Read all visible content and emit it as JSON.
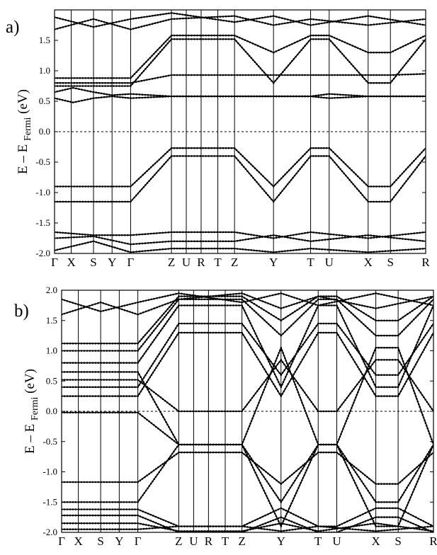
{
  "figure": {
    "background": "#ffffff",
    "line_color": "#000000"
  },
  "chart_data": [
    {
      "type": "line",
      "panel_label": "a)",
      "ylabel": {
        "main": "E – E",
        "sub": "Fermi",
        "unit": "(eV)"
      },
      "ylim": [
        -2.0,
        2.0
      ],
      "yticks": [
        "-2.0",
        "-1.5",
        "-1.0",
        "-0.5",
        "0.0",
        "0.5",
        "1.0",
        "1.5"
      ],
      "ytick_values": [
        -2.0,
        -1.5,
        -1.0,
        -0.5,
        0.0,
        0.5,
        1.0,
        1.5
      ],
      "fermi_level": 0.0,
      "fermi_style": "dashed",
      "high_symmetry_labels": [
        "Γ",
        "X",
        "S",
        "Y",
        "Γ",
        "Z",
        "U",
        "R",
        "T",
        "Z",
        "Y",
        "T",
        "U",
        "X",
        "S",
        "R"
      ],
      "high_symmetry_positions": [
        0,
        0.045,
        0.105,
        0.155,
        0.205,
        0.315,
        0.355,
        0.395,
        0.44,
        0.485,
        0.59,
        0.69,
        0.74,
        0.845,
        0.905,
        1.0
      ],
      "series": [
        {
          "x": [
            0,
            0.205,
            0.315,
            0.485,
            0.59,
            0.69,
            0.74,
            0.845,
            0.905,
            1.0
          ],
          "y": [
            -0.9,
            -0.9,
            -0.27,
            -0.27,
            -0.9,
            -0.27,
            -0.27,
            -0.9,
            -0.9,
            -0.27
          ]
        },
        {
          "x": [
            0,
            0.205,
            0.315,
            0.485,
            0.59,
            0.69,
            0.74,
            0.845,
            0.905,
            1.0
          ],
          "y": [
            -1.15,
            -1.15,
            -0.4,
            -0.4,
            -1.15,
            -0.4,
            -0.4,
            -1.15,
            -1.15,
            -0.4
          ]
        },
        {
          "x": [
            0,
            0.205,
            0.315,
            0.485,
            0.59,
            0.69,
            0.74,
            0.845,
            0.905,
            1.0
          ],
          "y": [
            0.8,
            0.8,
            0.93,
            0.93,
            0.93,
            0.93,
            0.93,
            0.93,
            0.93,
            0.95
          ]
        },
        {
          "x": [
            0,
            0.205,
            0.315,
            0.485,
            0.59,
            0.69,
            0.74,
            0.845,
            0.905,
            1.0
          ],
          "y": [
            0.75,
            0.75,
            1.52,
            1.52,
            0.8,
            1.52,
            1.52,
            0.8,
            0.8,
            1.52
          ]
        },
        {
          "x": [
            0,
            0.205,
            0.315,
            0.485,
            0.59,
            0.69,
            0.74,
            0.845,
            0.905,
            1.0
          ],
          "y": [
            0.88,
            0.88,
            1.58,
            1.58,
            1.3,
            1.58,
            1.58,
            1.3,
            1.3,
            1.58
          ]
        },
        {
          "x": [
            0,
            0.05,
            0.105,
            0.155,
            0.205,
            0.315,
            0.485,
            0.59,
            0.69,
            0.74,
            0.845,
            0.905,
            1.0
          ],
          "y": [
            0.55,
            0.48,
            0.55,
            0.58,
            0.55,
            0.58,
            0.58,
            0.58,
            0.58,
            0.62,
            0.58,
            0.58,
            0.58
          ]
        },
        {
          "x": [
            0,
            0.05,
            0.105,
            0.155,
            0.205,
            0.315,
            0.485,
            0.59,
            0.69,
            0.74,
            0.845,
            0.905,
            1.0
          ],
          "y": [
            0.65,
            0.72,
            0.65,
            0.6,
            0.62,
            0.58,
            0.58,
            0.58,
            0.58,
            0.55,
            0.58,
            0.58,
            0.58
          ]
        },
        {
          "x": [
            0,
            0.105,
            0.205,
            0.315,
            0.485,
            0.59,
            0.69,
            0.845,
            1.0
          ],
          "y": [
            1.68,
            1.85,
            1.68,
            1.85,
            1.9,
            1.75,
            1.85,
            1.75,
            1.85
          ]
        },
        {
          "x": [
            0,
            0.105,
            0.205,
            0.315,
            0.485,
            0.59,
            0.69,
            0.845,
            1.0
          ],
          "y": [
            1.88,
            1.72,
            1.85,
            1.95,
            1.8,
            1.9,
            1.75,
            1.9,
            1.75
          ]
        },
        {
          "x": [
            0,
            0.105,
            0.205,
            0.315,
            0.485,
            0.59,
            0.69,
            0.845,
            1.0
          ],
          "y": [
            -1.65,
            -1.7,
            -1.7,
            -1.65,
            -1.65,
            -1.75,
            -1.65,
            -1.75,
            -1.65
          ]
        },
        {
          "x": [
            0,
            0.105,
            0.205,
            0.315,
            0.485,
            0.59,
            0.69,
            0.845,
            1.0
          ],
          "y": [
            -1.75,
            -1.72,
            -1.85,
            -1.8,
            -1.8,
            -1.7,
            -1.8,
            -1.7,
            -1.8
          ]
        },
        {
          "x": [
            0,
            0.105,
            0.205,
            0.315,
            0.485,
            0.59,
            0.69,
            0.845,
            1.0
          ],
          "y": [
            -1.95,
            -1.8,
            -1.98,
            -1.92,
            -1.92,
            -1.98,
            -1.92,
            -1.98,
            -1.92
          ]
        }
      ]
    },
    {
      "type": "line",
      "panel_label": "b)",
      "ylabel": {
        "main": "E – E",
        "sub": "Fermi",
        "unit": "(eV)"
      },
      "ylim": [
        -2.0,
        2.0
      ],
      "yticks": [
        "-2.0",
        "-1.5",
        "-1.0",
        "-0.5",
        "0.0",
        "0.5",
        "1.0",
        "1.5",
        "2.0"
      ],
      "ytick_values": [
        -2.0,
        -1.5,
        -1.0,
        -0.5,
        0.0,
        0.5,
        1.0,
        1.5,
        2.0
      ],
      "fermi_level": 0.0,
      "fermi_style": "dashed",
      "high_symmetry_labels": [
        "Γ",
        "X",
        "S",
        "Y",
        "Γ",
        "Z",
        "U",
        "R",
        "T",
        "Z",
        "Y",
        "T",
        "U",
        "X",
        "S",
        "R"
      ],
      "high_symmetry_positions": [
        0,
        0.045,
        0.105,
        0.155,
        0.205,
        0.315,
        0.355,
        0.395,
        0.44,
        0.485,
        0.59,
        0.69,
        0.74,
        0.845,
        0.905,
        1.0
      ],
      "series": [
        {
          "x": [
            0,
            0.205,
            0.315,
            0.485,
            0.59,
            0.69,
            0.74,
            0.845,
            0.905,
            1.0
          ],
          "y": [
            -0.02,
            -0.02,
            -0.55,
            -0.55,
            -1.9,
            -0.55,
            -0.55,
            -1.9,
            -1.9,
            -0.55
          ]
        },
        {
          "x": [
            0,
            0.205,
            0.315,
            0.485,
            0.59,
            0.69,
            0.74,
            0.845,
            0.905,
            1.0
          ],
          "y": [
            -1.17,
            -1.17,
            -0.68,
            -0.68,
            -1.2,
            -0.68,
            -0.68,
            -1.2,
            -1.2,
            -0.68
          ]
        },
        {
          "x": [
            0,
            0.205,
            0.315,
            0.485,
            0.59,
            0.69,
            0.74,
            0.845,
            0.905,
            1.0
          ],
          "y": [
            0.25,
            0.25,
            1.3,
            1.3,
            0.25,
            1.3,
            1.3,
            0.25,
            0.25,
            1.3
          ]
        },
        {
          "x": [
            0,
            0.205,
            0.315,
            0.485,
            0.59,
            0.69,
            0.74,
            0.845,
            0.905,
            1.0
          ],
          "y": [
            0.4,
            0.4,
            1.45,
            1.45,
            0.6,
            1.45,
            1.45,
            0.6,
            0.6,
            1.45
          ]
        },
        {
          "x": [
            0,
            0.205,
            0.315,
            0.485,
            0.59,
            0.69,
            0.74,
            0.845,
            0.905,
            1.0
          ],
          "y": [
            0.52,
            0.52,
            0.0,
            0.0,
            0.85,
            0.0,
            0.0,
            0.85,
            0.85,
            0.0
          ]
        },
        {
          "x": [
            0,
            0.205,
            0.315,
            0.485,
            0.59,
            0.69,
            0.74,
            0.845,
            0.905,
            1.0
          ],
          "y": [
            0.65,
            0.65,
            -0.55,
            -0.55,
            1.05,
            -0.55,
            -0.55,
            1.05,
            1.05,
            -0.55
          ]
        },
        {
          "x": [
            0,
            0.205,
            0.315,
            0.485,
            0.59,
            0.69,
            0.74,
            0.845,
            0.905,
            1.0
          ],
          "y": [
            0.8,
            0.8,
            1.75,
            1.75,
            0.4,
            1.75,
            1.75,
            0.4,
            0.4,
            1.75
          ]
        },
        {
          "x": [
            0,
            0.205,
            0.315,
            0.485,
            0.59,
            0.69,
            0.74,
            0.845,
            0.905,
            1.0
          ],
          "y": [
            1.0,
            1.0,
            1.85,
            1.85,
            1.25,
            1.85,
            1.85,
            1.25,
            1.25,
            1.85
          ]
        },
        {
          "x": [
            0,
            0.205,
            0.315,
            0.485,
            0.59,
            0.69,
            0.74,
            0.845,
            0.905,
            1.0
          ],
          "y": [
            1.12,
            1.12,
            1.9,
            1.9,
            1.5,
            1.9,
            1.9,
            1.5,
            1.5,
            1.9
          ]
        },
        {
          "x": [
            0,
            0.105,
            0.205,
            0.315,
            0.485,
            0.59,
            0.69,
            0.845,
            1.0
          ],
          "y": [
            1.6,
            1.8,
            1.6,
            1.85,
            1.95,
            1.7,
            1.9,
            1.7,
            1.9
          ]
        },
        {
          "x": [
            0,
            0.105,
            0.205,
            0.315,
            0.485,
            0.59,
            0.69,
            0.845,
            1.0
          ],
          "y": [
            1.85,
            1.65,
            1.8,
            1.95,
            1.8,
            1.95,
            1.75,
            1.95,
            1.75
          ]
        },
        {
          "x": [
            0,
            0.205,
            0.315,
            0.485,
            0.59,
            0.69,
            0.74,
            0.845,
            0.905,
            1.0
          ],
          "y": [
            -1.5,
            -1.5,
            -0.55,
            -0.55,
            -1.5,
            -0.55,
            -0.55,
            -1.5,
            -1.5,
            -0.55
          ]
        },
        {
          "x": [
            0,
            0.205,
            0.315,
            0.485,
            0.59,
            0.69,
            0.74,
            0.845,
            0.905,
            1.0
          ],
          "y": [
            -1.62,
            -1.62,
            -1.9,
            -1.9,
            -1.6,
            -1.9,
            -1.9,
            -1.6,
            -1.6,
            -1.9
          ]
        },
        {
          "x": [
            0,
            0.205,
            0.315,
            0.485,
            0.59,
            0.69,
            0.74,
            0.845,
            0.905,
            1.0
          ],
          "y": [
            -1.72,
            -1.72,
            -2.0,
            -2.0,
            -1.75,
            -2.0,
            -2.0,
            -1.75,
            -1.75,
            -2.0
          ]
        },
        {
          "x": [
            0,
            0.205,
            0.315,
            0.485,
            0.59,
            0.69,
            0.845,
            1.0
          ],
          "y": [
            -1.85,
            -1.85,
            -1.98,
            -1.98,
            -1.85,
            -1.98,
            -1.85,
            -1.98
          ]
        },
        {
          "x": [
            0,
            0.205,
            0.315,
            0.485,
            0.59,
            0.69,
            0.845,
            1.0
          ],
          "y": [
            -1.95,
            -1.95,
            -1.9,
            -1.9,
            -1.98,
            -1.9,
            -1.98,
            -1.9
          ]
        }
      ]
    }
  ]
}
